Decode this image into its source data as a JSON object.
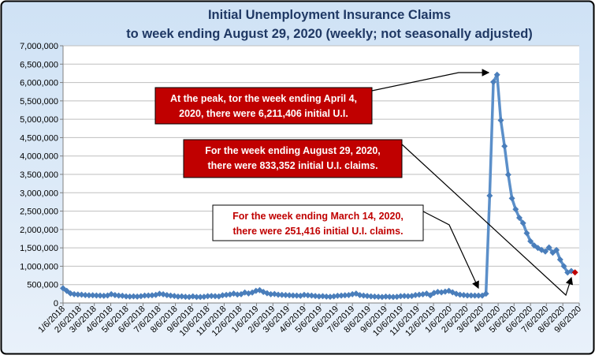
{
  "chart_data": {
    "type": "line",
    "title": [
      "Initial Unemployment Insurance Claims",
      "to week ending August 29, 2020 (weekly; not seasonally adjusted)"
    ],
    "x": [
      "2018-01-06",
      "2018-01-13",
      "2018-01-20",
      "2018-01-27",
      "2018-02-03",
      "2018-02-10",
      "2018-02-17",
      "2018-02-24",
      "2018-03-03",
      "2018-03-10",
      "2018-03-17",
      "2018-03-24",
      "2018-03-31",
      "2018-04-07",
      "2018-04-14",
      "2018-04-21",
      "2018-04-28",
      "2018-05-05",
      "2018-05-12",
      "2018-05-19",
      "2018-05-26",
      "2018-06-02",
      "2018-06-09",
      "2018-06-16",
      "2018-06-23",
      "2018-06-30",
      "2018-07-07",
      "2018-07-14",
      "2018-07-21",
      "2018-07-28",
      "2018-08-04",
      "2018-08-11",
      "2018-08-18",
      "2018-08-25",
      "2018-09-01",
      "2018-09-08",
      "2018-09-15",
      "2018-09-22",
      "2018-09-29",
      "2018-10-06",
      "2018-10-13",
      "2018-10-20",
      "2018-10-27",
      "2018-11-03",
      "2018-11-10",
      "2018-11-17",
      "2018-11-24",
      "2018-12-01",
      "2018-12-08",
      "2018-12-15",
      "2018-12-22",
      "2018-12-29",
      "2019-01-05",
      "2019-01-12",
      "2019-01-19",
      "2019-01-26",
      "2019-02-02",
      "2019-02-09",
      "2019-02-16",
      "2019-02-23",
      "2019-03-02",
      "2019-03-09",
      "2019-03-16",
      "2019-03-23",
      "2019-03-30",
      "2019-04-06",
      "2019-04-13",
      "2019-04-20",
      "2019-04-27",
      "2019-05-04",
      "2019-05-11",
      "2019-05-18",
      "2019-05-25",
      "2019-06-01",
      "2019-06-08",
      "2019-06-15",
      "2019-06-22",
      "2019-06-29",
      "2019-07-06",
      "2019-07-13",
      "2019-07-20",
      "2019-07-27",
      "2019-08-03",
      "2019-08-10",
      "2019-08-17",
      "2019-08-24",
      "2019-08-31",
      "2019-09-07",
      "2019-09-14",
      "2019-09-21",
      "2019-09-28",
      "2019-10-05",
      "2019-10-12",
      "2019-10-19",
      "2019-10-26",
      "2019-11-02",
      "2019-11-09",
      "2019-11-16",
      "2019-11-23",
      "2019-11-30",
      "2019-12-07",
      "2019-12-14",
      "2019-12-21",
      "2019-12-28",
      "2020-01-04",
      "2020-01-11",
      "2020-01-18",
      "2020-01-25",
      "2020-02-01",
      "2020-02-08",
      "2020-02-15",
      "2020-02-22",
      "2020-02-29",
      "2020-03-07",
      "2020-03-14",
      "2020-03-21",
      "2020-03-28",
      "2020-04-04",
      "2020-04-11",
      "2020-04-18",
      "2020-04-25",
      "2020-05-02",
      "2020-05-09",
      "2020-05-16",
      "2020-05-23",
      "2020-05-30",
      "2020-06-06",
      "2020-06-13",
      "2020-06-20",
      "2020-06-27",
      "2020-07-04",
      "2020-07-11",
      "2020-07-18",
      "2020-07-25",
      "2020-08-01",
      "2020-08-08",
      "2020-08-15",
      "2020-08-22",
      "2020-08-29"
    ],
    "series": [
      {
        "name": "Initial claims",
        "color": "#5b8fc9",
        "marker_color": "#4a7ebb",
        "last_point_color": "#c00000",
        "values": [
          400000,
          330000,
          260000,
          240000,
          230000,
          225000,
          215000,
          210000,
          210000,
          205000,
          200000,
          195000,
          205000,
          240000,
          215000,
          200000,
          195000,
          180000,
          175000,
          180000,
          175000,
          185000,
          200000,
          205000,
          210000,
          220000,
          250000,
          235000,
          215000,
          200000,
          190000,
          175000,
          180000,
          170000,
          165000,
          180000,
          165000,
          165000,
          170000,
          185000,
          190000,
          185000,
          180000,
          210000,
          220000,
          230000,
          255000,
          230000,
          240000,
          285000,
          260000,
          285000,
          330000,
          350000,
          300000,
          265000,
          240000,
          245000,
          225000,
          220000,
          215000,
          210000,
          205000,
          200000,
          195000,
          220000,
          210000,
          200000,
          190000,
          180000,
          185000,
          175000,
          170000,
          180000,
          195000,
          200000,
          210000,
          215000,
          240000,
          255000,
          215000,
          200000,
          190000,
          180000,
          175000,
          170000,
          165000,
          175000,
          170000,
          165000,
          170000,
          185000,
          190000,
          185000,
          190000,
          215000,
          225000,
          235000,
          255000,
          210000,
          275000,
          300000,
          290000,
          310000,
          330000,
          290000,
          250000,
          225000,
          215000,
          205000,
          205000,
          200000,
          200000,
          200000,
          251416,
          2920000,
          6015000,
          6211406,
          4971000,
          4267000,
          3492000,
          2849000,
          2549000,
          2318000,
          2174000,
          1900000,
          1680000,
          1566000,
          1498000,
          1443000,
          1400000,
          1510000,
          1370000,
          1440000,
          1180000,
          1000000,
          830000,
          870000,
          833352
        ]
      }
    ],
    "xlim": [
      "2018-01-06",
      "2020-09-06"
    ],
    "xticks": [
      {
        "value": "2018-01-06",
        "label": "1/6/2018"
      },
      {
        "value": "2018-02-06",
        "label": "2/6/2018"
      },
      {
        "value": "2018-03-06",
        "label": "3/6/2018"
      },
      {
        "value": "2018-04-06",
        "label": "4/6/2018"
      },
      {
        "value": "2018-05-06",
        "label": "5/6/2018"
      },
      {
        "value": "2018-06-06",
        "label": "6/6/2018"
      },
      {
        "value": "2018-07-06",
        "label": "7/6/2018"
      },
      {
        "value": "2018-08-06",
        "label": "8/6/2018"
      },
      {
        "value": "2018-09-06",
        "label": "9/6/2018"
      },
      {
        "value": "2018-10-06",
        "label": "10/6/2018"
      },
      {
        "value": "2018-11-06",
        "label": "11/6/2018"
      },
      {
        "value": "2018-12-06",
        "label": "12/6/2018"
      },
      {
        "value": "2019-01-06",
        "label": "1/6/2019"
      },
      {
        "value": "2019-02-06",
        "label": "2/6/2019"
      },
      {
        "value": "2019-03-06",
        "label": "3/6/2019"
      },
      {
        "value": "2019-04-06",
        "label": "4/6/2019"
      },
      {
        "value": "2019-05-06",
        "label": "5/6/2019"
      },
      {
        "value": "2019-06-06",
        "label": "6/6/2019"
      },
      {
        "value": "2019-07-06",
        "label": "7/6/2019"
      },
      {
        "value": "2019-08-06",
        "label": "8/6/2019"
      },
      {
        "value": "2019-09-06",
        "label": "9/6/2019"
      },
      {
        "value": "2019-10-06",
        "label": "10/6/2019"
      },
      {
        "value": "2019-11-06",
        "label": "11/6/2019"
      },
      {
        "value": "2019-12-06",
        "label": "12/6/2019"
      },
      {
        "value": "2020-01-06",
        "label": "1/6/2020"
      },
      {
        "value": "2020-02-06",
        "label": "2/6/2020"
      },
      {
        "value": "2020-03-06",
        "label": "3/6/2020"
      },
      {
        "value": "2020-04-06",
        "label": "4/6/2020"
      },
      {
        "value": "2020-05-06",
        "label": "5/6/2020"
      },
      {
        "value": "2020-06-06",
        "label": "6/6/2020"
      },
      {
        "value": "2020-07-06",
        "label": "7/6/2020"
      },
      {
        "value": "2020-08-06",
        "label": "8/6/2020"
      },
      {
        "value": "2020-09-06",
        "label": "9/6/2020"
      }
    ],
    "ylim": [
      0,
      7000000
    ],
    "yticks": [
      0,
      {
        "value": 500000,
        "label": "500,000"
      },
      {
        "value": 1000000,
        "label": "1,000,000"
      },
      {
        "value": 1500000,
        "label": "1,500,000"
      },
      {
        "value": 2000000,
        "label": "2,000,000"
      },
      {
        "value": 2500000,
        "label": "2,500,000"
      },
      {
        "value": 3000000,
        "label": "3,000,000"
      },
      {
        "value": 3500000,
        "label": "3,500,000"
      },
      {
        "value": 4000000,
        "label": "4,000,000"
      },
      {
        "value": 4500000,
        "label": "4,500,000"
      },
      {
        "value": 5000000,
        "label": "5,000,000"
      },
      {
        "value": 5500000,
        "label": "5,500,000"
      },
      {
        "value": 6000000,
        "label": "6,000,000"
      },
      {
        "value": 6500000,
        "label": "6,500,000"
      },
      {
        "value": 7000000,
        "label": "7,000,000"
      }
    ],
    "grid": true,
    "annotations": [
      {
        "lines": [
          "At the peak, tor the week ending April 4,",
          "2020,  there were  6,211,406  initial U.I."
        ],
        "color": "#c00000"
      },
      {
        "lines": [
          "For the week ending  August 29, 2020,",
          "there were  833,352  initial U.I. claims."
        ],
        "color": "#c00000"
      },
      {
        "lines": [
          "For the week ending March 14,  2020,",
          "there were  251,416  initial U.I. claims."
        ],
        "color": "#ffffff",
        "text_color": "#c00000"
      }
    ]
  }
}
